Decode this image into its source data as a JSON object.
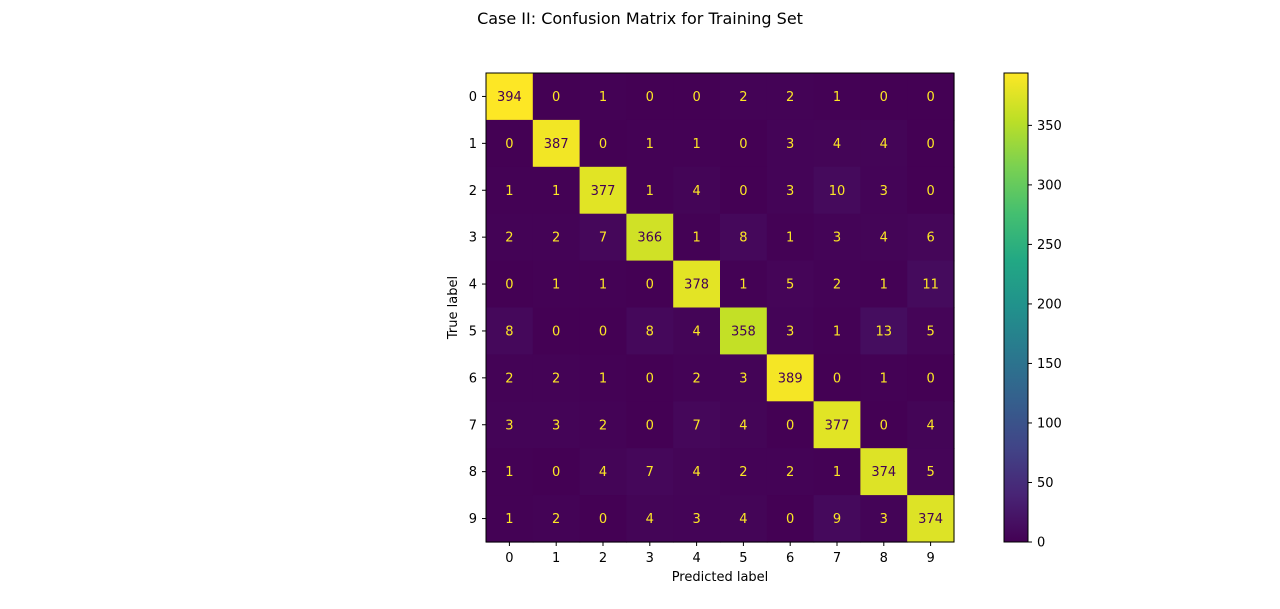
{
  "chart_data": {
    "type": "heatmap",
    "title": "Case II: Confusion Matrix for Training Set",
    "xlabel": "Predicted label",
    "ylabel": "True label",
    "x_tick_labels": [
      "0",
      "1",
      "2",
      "3",
      "4",
      "5",
      "6",
      "7",
      "8",
      "9"
    ],
    "y_tick_labels": [
      "0",
      "1",
      "2",
      "3",
      "4",
      "5",
      "6",
      "7",
      "8",
      "9"
    ],
    "matrix": [
      [
        394,
        0,
        1,
        0,
        0,
        2,
        2,
        1,
        0,
        0
      ],
      [
        0,
        387,
        0,
        1,
        1,
        0,
        3,
        4,
        4,
        0
      ],
      [
        1,
        1,
        377,
        1,
        4,
        0,
        3,
        10,
        3,
        0
      ],
      [
        2,
        2,
        7,
        366,
        1,
        8,
        1,
        3,
        4,
        6
      ],
      [
        0,
        1,
        1,
        0,
        378,
        1,
        5,
        2,
        1,
        11
      ],
      [
        8,
        0,
        0,
        8,
        4,
        358,
        3,
        1,
        13,
        5
      ],
      [
        2,
        2,
        1,
        0,
        2,
        3,
        389,
        0,
        1,
        0
      ],
      [
        3,
        3,
        2,
        0,
        7,
        4,
        0,
        377,
        0,
        4
      ],
      [
        1,
        0,
        4,
        7,
        4,
        2,
        2,
        1,
        374,
        5
      ],
      [
        1,
        2,
        0,
        4,
        3,
        4,
        0,
        9,
        3,
        374
      ]
    ],
    "colormap": "viridis",
    "value_range": [
      0,
      394
    ],
    "colorbar_ticks": [
      0,
      50,
      100,
      150,
      200,
      250,
      300,
      350
    ],
    "text_color_light": "#fde725",
    "text_color_dark": "#440154"
  }
}
